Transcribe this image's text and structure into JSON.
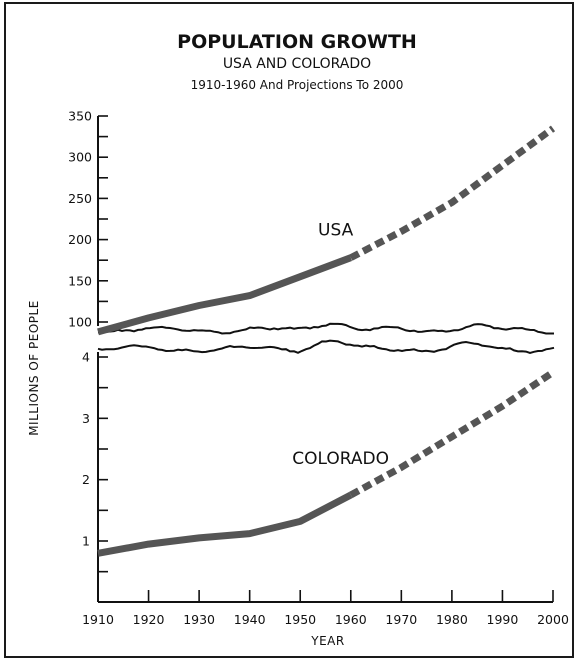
{
  "chart_data": {
    "type": "line",
    "title": "POPULATION GROWTH",
    "subtitle": "USA AND COLORADO",
    "subtitle2": "1910-1960 And Projections To 2000",
    "xlabel": "YEAR",
    "ylabel": "MILLIONS OF PEOPLE",
    "x_ticks": [
      "1910",
      "1920",
      "1930",
      "1940",
      "1950",
      "1960",
      "1970",
      "1980",
      "1990",
      "2000"
    ],
    "panels": [
      {
        "name": "USA",
        "ylim": [
          75,
          350
        ],
        "y_ticks": [
          "100",
          "150",
          "200",
          "250",
          "300",
          "350"
        ],
        "actual": {
          "x": [
            1910,
            1920,
            1930,
            1940,
            1950,
            1960
          ],
          "y": [
            88,
            105,
            120,
            132,
            155,
            178
          ]
        },
        "projection": {
          "x": [
            1960,
            1970,
            1980,
            1990,
            2000
          ],
          "y": [
            178,
            210,
            245,
            290,
            335
          ]
        }
      },
      {
        "name": "COLORADO",
        "ylim": [
          0.5,
          4.2
        ],
        "y_ticks": [
          "1",
          "2",
          "3",
          "4"
        ],
        "actual": {
          "x": [
            1910,
            1920,
            1930,
            1940,
            1950,
            1960
          ],
          "y": [
            0.8,
            0.95,
            1.05,
            1.12,
            1.32,
            1.75
          ]
        },
        "projection": {
          "x": [
            1960,
            1970,
            1980,
            1990,
            2000
          ],
          "y": [
            1.75,
            2.2,
            2.7,
            3.2,
            3.75
          ]
        }
      }
    ],
    "series_color": "#555555"
  }
}
